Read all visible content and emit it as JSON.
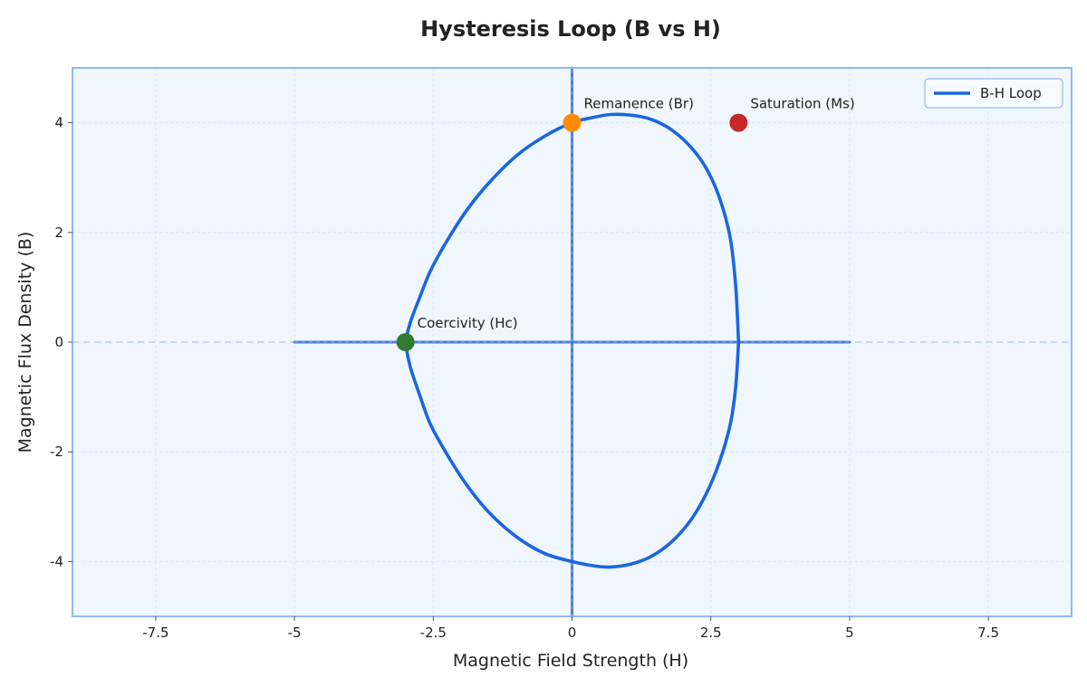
{
  "chart_data": {
    "type": "line",
    "title": "Hysteresis Loop (B vs H)",
    "xlabel": "Magnetic Field Strength (H)",
    "ylabel": "Magnetic Flux Density (B)",
    "xlim": [
      -9,
      9
    ],
    "ylim": [
      -5,
      5
    ],
    "xticks": [
      -7.5,
      -5,
      -2.5,
      0,
      2.5,
      5,
      7.5
    ],
    "xtick_labels": [
      "-7.5",
      "-5",
      "-2.5",
      "0",
      "2.5",
      "5",
      "7.5"
    ],
    "yticks": [
      -4,
      -2,
      0,
      2,
      4
    ],
    "ytick_labels": [
      "-4",
      "-2",
      "0",
      "2",
      "4"
    ],
    "grid": true,
    "legend_position": "top-right",
    "series": [
      {
        "name": "B-H Loop",
        "color": "#1a66e0",
        "x": [
          3.0,
          2.95,
          2.85,
          2.65,
          2.4,
          2.1,
          1.75,
          1.4,
          1.05,
          0.7,
          0.4,
          0.0,
          -0.5,
          -1.0,
          -1.5,
          -1.9,
          -2.25,
          -2.55,
          -2.75,
          -2.9,
          -2.97,
          -3.0,
          -2.97,
          -2.9,
          -2.75,
          -2.55,
          -2.25,
          -1.9,
          -1.5,
          -1.0,
          -0.5,
          0.0,
          0.4,
          0.7,
          1.05,
          1.4,
          1.75,
          2.1,
          2.4,
          2.65,
          2.85,
          2.95,
          3.0
        ],
        "y": [
          0.0,
          1.0,
          1.9,
          2.65,
          3.2,
          3.6,
          3.9,
          4.07,
          4.14,
          4.15,
          4.1,
          4.0,
          3.75,
          3.4,
          2.9,
          2.4,
          1.85,
          1.3,
          0.8,
          0.4,
          0.15,
          0.0,
          -0.2,
          -0.5,
          -0.95,
          -1.5,
          -2.05,
          -2.6,
          -3.1,
          -3.55,
          -3.85,
          -4.0,
          -4.08,
          -4.1,
          -4.05,
          -3.92,
          -3.68,
          -3.3,
          -2.8,
          -2.2,
          -1.5,
          -0.8,
          0.0
        ]
      }
    ],
    "axis_segments": [
      {
        "x": [
          -5,
          5
        ],
        "y": [
          0,
          0
        ]
      },
      {
        "x": [
          0,
          0
        ],
        "y": [
          -5,
          5
        ]
      }
    ],
    "reference_lines": [
      {
        "orientation": "horizontal",
        "value": 0,
        "style": "dashed"
      }
    ],
    "points": [
      {
        "label": "Remanence (Br)",
        "x": 0,
        "y": 4,
        "color": "#ff8c00"
      },
      {
        "label": "Saturation (Ms)",
        "x": 3,
        "y": 4,
        "color": "#c62828"
      },
      {
        "label": "Coercivity (Hc)",
        "x": -3,
        "y": 0,
        "color": "#2e7d32"
      }
    ]
  },
  "colors": {
    "plot_background": "#f0f6fd",
    "frame": "#93b9f0",
    "grid": "#dbe5f2",
    "axis_line": "#4a7fd4",
    "zero_dashed": "#b6cff2"
  }
}
